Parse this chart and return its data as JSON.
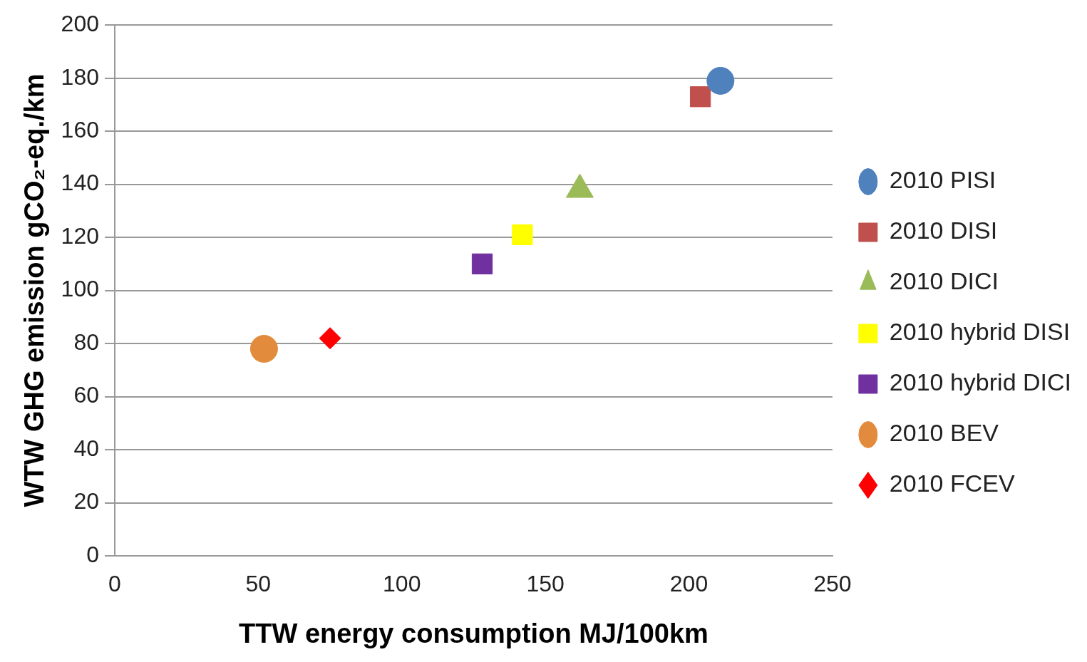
{
  "chart_data": {
    "type": "scatter",
    "xlabel": "TTW energy consumption MJ/100km",
    "ylabel": "WTW GHG emission gCO₂-eq./km",
    "xlim": [
      0,
      250
    ],
    "xticks": [
      0,
      50,
      100,
      150,
      200,
      250
    ],
    "ylim": [
      0,
      200
    ],
    "yticks": [
      0,
      20,
      40,
      60,
      80,
      100,
      120,
      140,
      160,
      180,
      200
    ],
    "grid": "y",
    "legend": "right",
    "series": [
      {
        "name": "2010 PISI",
        "color": "#4f81bd",
        "marker": "circle",
        "x": [
          211
        ],
        "values": [
          179
        ]
      },
      {
        "name": "2010 DISI",
        "color": "#c0504d",
        "marker": "square",
        "x": [
          204
        ],
        "values": [
          173
        ]
      },
      {
        "name": "2010 DICI",
        "color": "#9bbb59",
        "marker": "triangle",
        "x": [
          162
        ],
        "values": [
          138
        ]
      },
      {
        "name": "2010 hybrid DISI",
        "color": "#ffff00",
        "marker": "square",
        "x": [
          142
        ],
        "values": [
          121
        ]
      },
      {
        "name": "2010 hybrid DICI",
        "color": "#7030a0",
        "marker": "square",
        "x": [
          128
        ],
        "values": [
          110
        ]
      },
      {
        "name": "2010 BEV",
        "color": "#e38b3c",
        "marker": "circle",
        "x": [
          52
        ],
        "values": [
          78
        ]
      },
      {
        "name": "2010 FCEV",
        "color": "#ff0000",
        "marker": "diamond",
        "x": [
          75
        ],
        "values": [
          82
        ]
      }
    ]
  }
}
